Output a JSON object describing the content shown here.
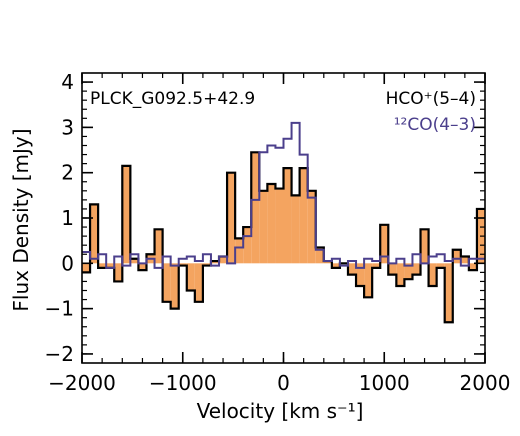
{
  "chart_data": {
    "type": "step",
    "xlabel": "Velocity [km s⁻¹]",
    "ylabel": "Flux Density [mJy]",
    "xlim": [
      -2000,
      2000
    ],
    "ylim": [
      -2.2,
      4.2
    ],
    "x_ticks": [
      -2000,
      -1000,
      0,
      1000,
      2000
    ],
    "x_tick_labels": [
      "−2000",
      "−1000",
      "0",
      "1000",
      "2000"
    ],
    "y_ticks": [
      -2,
      -1,
      0,
      1,
      2,
      3,
      4
    ],
    "y_tick_labels": [
      "−2",
      "−1",
      "0",
      "1",
      "2",
      "3",
      "4"
    ],
    "x_minor_step": 200,
    "y_minor_step": 0.2,
    "source_label": "PLCK_G092.5+42.9",
    "legend_position": "top-right",
    "series": [
      {
        "name": "HCO⁺(5–4)",
        "color": "#000000",
        "fill": "#f4a460",
        "style": "filled-histogram",
        "bins": [
          {
            "x0": -2000,
            "x1": -1920,
            "y": -0.2
          },
          {
            "x0": -1920,
            "x1": -1840,
            "y": 1.3
          },
          {
            "x0": -1840,
            "x1": -1680,
            "y": -0.1
          },
          {
            "x0": -1680,
            "x1": -1600,
            "y": -0.4
          },
          {
            "x0": -1600,
            "x1": -1520,
            "y": 2.15
          },
          {
            "x0": -1520,
            "x1": -1440,
            "y": 0.1
          },
          {
            "x0": -1440,
            "x1": -1360,
            "y": -0.15
          },
          {
            "x0": -1360,
            "x1": -1280,
            "y": 0.2
          },
          {
            "x0": -1280,
            "x1": -1200,
            "y": 0.75
          },
          {
            "x0": -1200,
            "x1": -1120,
            "y": -0.85
          },
          {
            "x0": -1120,
            "x1": -1040,
            "y": -1.0
          },
          {
            "x0": -1040,
            "x1": -960,
            "y": -0.05
          },
          {
            "x0": -960,
            "x1": -880,
            "y": -0.6
          },
          {
            "x0": -880,
            "x1": -800,
            "y": -0.85
          },
          {
            "x0": -800,
            "x1": -720,
            "y": -0.05
          },
          {
            "x0": -720,
            "x1": -640,
            "y": 0.05
          },
          {
            "x0": -640,
            "x1": -560,
            "y": 0.15
          },
          {
            "x0": -560,
            "x1": -480,
            "y": 2.0
          },
          {
            "x0": -480,
            "x1": -400,
            "y": 0.55
          },
          {
            "x0": -400,
            "x1": -320,
            "y": 0.8
          },
          {
            "x0": -320,
            "x1": -240,
            "y": 2.45
          },
          {
            "x0": -240,
            "x1": -160,
            "y": 1.6
          },
          {
            "x0": -160,
            "x1": -80,
            "y": 1.75
          },
          {
            "x0": -80,
            "x1": 0,
            "y": 1.65
          },
          {
            "x0": 0,
            "x1": 80,
            "y": 2.1
          },
          {
            "x0": 80,
            "x1": 160,
            "y": 1.5
          },
          {
            "x0": 160,
            "x1": 240,
            "y": 2.1
          },
          {
            "x0": 240,
            "x1": 320,
            "y": 1.6
          },
          {
            "x0": 320,
            "x1": 400,
            "y": 0.35
          },
          {
            "x0": 400,
            "x1": 480,
            "y": 0.05
          },
          {
            "x0": 480,
            "x1": 560,
            "y": -0.1
          },
          {
            "x0": 560,
            "x1": 640,
            "y": 0.0
          },
          {
            "x0": 640,
            "x1": 720,
            "y": -0.25
          },
          {
            "x0": 720,
            "x1": 800,
            "y": -0.5
          },
          {
            "x0": 800,
            "x1": 880,
            "y": -0.75
          },
          {
            "x0": 880,
            "x1": 960,
            "y": -0.1
          },
          {
            "x0": 960,
            "x1": 1040,
            "y": 0.85
          },
          {
            "x0": 1040,
            "x1": 1120,
            "y": -0.25
          },
          {
            "x0": 1120,
            "x1": 1200,
            "y": -0.5
          },
          {
            "x0": 1200,
            "x1": 1280,
            "y": -0.35
          },
          {
            "x0": 1280,
            "x1": 1360,
            "y": -0.25
          },
          {
            "x0": 1360,
            "x1": 1440,
            "y": 0.75
          },
          {
            "x0": 1440,
            "x1": 1520,
            "y": -0.5
          },
          {
            "x0": 1520,
            "x1": 1600,
            "y": -0.1
          },
          {
            "x0": 1600,
            "x1": 1680,
            "y": -1.3
          },
          {
            "x0": 1680,
            "x1": 1760,
            "y": 0.3
          },
          {
            "x0": 1760,
            "x1": 1840,
            "y": 0.15
          },
          {
            "x0": 1840,
            "x1": 1920,
            "y": -0.15
          },
          {
            "x0": 1920,
            "x1": 2000,
            "y": 1.2
          }
        ]
      },
      {
        "name": "¹²CO(4–3)",
        "color": "#4b3f8c",
        "style": "step-line",
        "bins": [
          {
            "x0": -2000,
            "x1": -1920,
            "y": 0.25
          },
          {
            "x0": -1920,
            "x1": -1840,
            "y": 0.1
          },
          {
            "x0": -1840,
            "x1": -1760,
            "y": 0.2
          },
          {
            "x0": -1760,
            "x1": -1680,
            "y": -0.1
          },
          {
            "x0": -1680,
            "x1": -1600,
            "y": 0.15
          },
          {
            "x0": -1600,
            "x1": -1520,
            "y": -0.05
          },
          {
            "x0": -1520,
            "x1": -1440,
            "y": 0.2
          },
          {
            "x0": -1440,
            "x1": -1360,
            "y": 0.0
          },
          {
            "x0": -1360,
            "x1": -1280,
            "y": 0.1
          },
          {
            "x0": -1280,
            "x1": -1200,
            "y": -0.1
          },
          {
            "x0": -1200,
            "x1": -1120,
            "y": 0.15
          },
          {
            "x0": -1120,
            "x1": -1040,
            "y": -0.05
          },
          {
            "x0": -1040,
            "x1": -960,
            "y": 0.1
          },
          {
            "x0": -960,
            "x1": -880,
            "y": 0.15
          },
          {
            "x0": -880,
            "x1": -800,
            "y": 0.05
          },
          {
            "x0": -800,
            "x1": -720,
            "y": 0.2
          },
          {
            "x0": -720,
            "x1": -640,
            "y": -0.05
          },
          {
            "x0": -640,
            "x1": -560,
            "y": 0.15
          },
          {
            "x0": -560,
            "x1": -480,
            "y": 0.0
          },
          {
            "x0": -480,
            "x1": -400,
            "y": 0.35
          },
          {
            "x0": -400,
            "x1": -320,
            "y": 0.6
          },
          {
            "x0": -320,
            "x1": -240,
            "y": 1.4
          },
          {
            "x0": -240,
            "x1": -160,
            "y": 2.45
          },
          {
            "x0": -160,
            "x1": -80,
            "y": 2.6
          },
          {
            "x0": -80,
            "x1": 0,
            "y": 2.55
          },
          {
            "x0": 0,
            "x1": 80,
            "y": 2.75
          },
          {
            "x0": 80,
            "x1": 160,
            "y": 3.1
          },
          {
            "x0": 160,
            "x1": 240,
            "y": 2.4
          },
          {
            "x0": 240,
            "x1": 320,
            "y": 1.45
          },
          {
            "x0": 320,
            "x1": 400,
            "y": 0.3
          },
          {
            "x0": 400,
            "x1": 480,
            "y": 0.05
          },
          {
            "x0": 480,
            "x1": 560,
            "y": 0.1
          },
          {
            "x0": 560,
            "x1": 640,
            "y": -0.05
          },
          {
            "x0": 640,
            "x1": 720,
            "y": 0.05
          },
          {
            "x0": 720,
            "x1": 800,
            "y": -0.1
          },
          {
            "x0": 800,
            "x1": 880,
            "y": 0.1
          },
          {
            "x0": 880,
            "x1": 960,
            "y": 0.05
          },
          {
            "x0": 960,
            "x1": 1040,
            "y": 0.15
          },
          {
            "x0": 1040,
            "x1": 1120,
            "y": 0.0
          },
          {
            "x0": 1120,
            "x1": 1200,
            "y": 0.1
          },
          {
            "x0": 1200,
            "x1": 1280,
            "y": -0.05
          },
          {
            "x0": 1280,
            "x1": 1360,
            "y": 0.2
          },
          {
            "x0": 1360,
            "x1": 1440,
            "y": 0.0
          },
          {
            "x0": 1440,
            "x1": 1520,
            "y": 0.15
          },
          {
            "x0": 1520,
            "x1": 1600,
            "y": 0.2
          },
          {
            "x0": 1600,
            "x1": 1680,
            "y": 0.05
          },
          {
            "x0": 1680,
            "x1": 1760,
            "y": 0.1
          },
          {
            "x0": 1760,
            "x1": 1840,
            "y": -0.05
          },
          {
            "x0": 1840,
            "x1": 1920,
            "y": 0.1
          },
          {
            "x0": 1920,
            "x1": 2000,
            "y": 0.1
          }
        ]
      }
    ]
  }
}
